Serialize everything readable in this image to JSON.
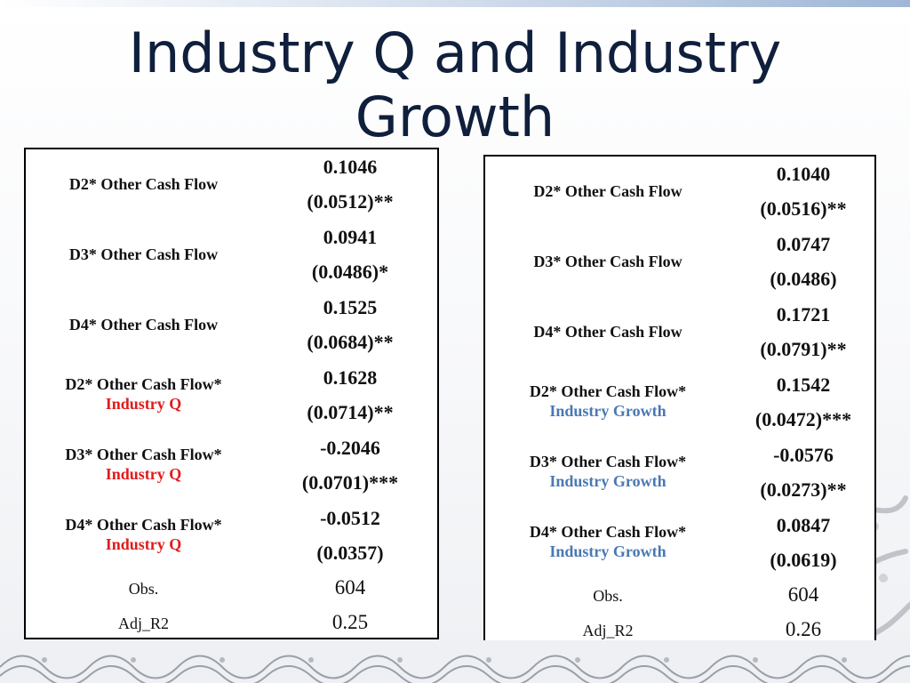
{
  "title": "Industry Q and Industry Growth",
  "tables": {
    "left": {
      "rows": [
        {
          "label": "D2* Other Cash Flow",
          "sub": "",
          "coef": "0.1046",
          "se": "(0.0512)**"
        },
        {
          "label": "D3* Other Cash Flow",
          "sub": "",
          "coef": "0.0941",
          "se": "(0.0486)*"
        },
        {
          "label": "D4* Other Cash Flow",
          "sub": "",
          "coef": "0.1525",
          "se": "(0.0684)**"
        },
        {
          "label": "D2* Other Cash Flow*",
          "sub": "Industry Q",
          "coef": "0.1628",
          "se": "(0.0714)**"
        },
        {
          "label": "D3* Other Cash Flow*",
          "sub": "Industry Q",
          "coef": "-0.2046",
          "se": "(0.0701)***"
        },
        {
          "label": "D4* Other Cash Flow*",
          "sub": "Industry Q",
          "coef": "-0.0512",
          "se": "(0.0357)"
        }
      ],
      "obs_label": "Obs.",
      "obs_value": "604",
      "r2_label": "Adj_R2",
      "r2_value": "0.25"
    },
    "right": {
      "rows": [
        {
          "label": "D2* Other Cash Flow",
          "sub": "",
          "coef": "0.1040",
          "se": "(0.0516)**"
        },
        {
          "label": "D3* Other Cash Flow",
          "sub": "",
          "coef": "0.0747",
          "se": "(0.0486)"
        },
        {
          "label": "D4* Other Cash Flow",
          "sub": "",
          "coef": "0.1721",
          "se": "(0.0791)**"
        },
        {
          "label": "D2* Other Cash Flow*",
          "sub": "Industry Growth",
          "coef": "0.1542",
          "se": "(0.0472)***"
        },
        {
          "label": "D3* Other Cash Flow*",
          "sub": "Industry Growth",
          "coef": "-0.0576",
          "se": "(0.0273)**"
        },
        {
          "label": "D4* Other Cash Flow*",
          "sub": "Industry Growth",
          "coef": "0.0847",
          "se": "(0.0619)"
        }
      ],
      "obs_label": "Obs.",
      "obs_value": "604",
      "r2_label": "Adj_R2",
      "r2_value": "0.26"
    }
  },
  "colors": {
    "title": "#0f1f3c",
    "industry_q": "#e11b1b",
    "industry_growth": "#4a78b4"
  },
  "decorations": [
    "dragon-illustration",
    "wave-border"
  ]
}
